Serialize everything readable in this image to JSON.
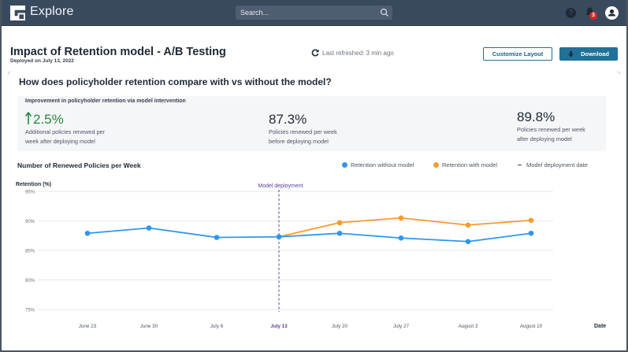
{
  "app": {
    "name": "Explore",
    "search_placeholder": "Search...",
    "notification_count": "3"
  },
  "header": {
    "title": "Impact of Retention model - A/B Testing",
    "subtitle": "Deployed on July 13, 2022",
    "last_refreshed": "Last refreshed: 3 min ago",
    "customize_label": "Customize Layout",
    "download_label": "Download"
  },
  "section": {
    "question": "How does policyholder retention compare with vs without the model?"
  },
  "kpi": {
    "title": "Improvement in policyholder retention via model intervention",
    "items": [
      {
        "value": "2.5%",
        "trend": "up",
        "desc_line1": "Additional policies renewed per",
        "desc_line2": "week after deploying model"
      },
      {
        "value": "87.3%",
        "desc_line1": "Policies renewed per week",
        "desc_line2": "before deploying model"
      },
      {
        "value": "89.8%",
        "desc_line1": "Policies renewed per week",
        "desc_line2": "after deploying model"
      }
    ]
  },
  "colors": {
    "without_model": "#2f96ee",
    "with_model": "#f89b2e",
    "deployment": "#5b3f9e",
    "positive": "#1e8a3a"
  },
  "chart_data": {
    "type": "line",
    "title": "Number of Renewed Policies per Week",
    "xlabel": "Date",
    "ylabel": "Retention (%)",
    "ylim": [
      75,
      95
    ],
    "yticks": [
      75,
      80,
      85,
      90,
      95
    ],
    "ytick_labels": [
      "75%",
      "80%",
      "85%",
      "90%",
      "95%"
    ],
    "grid": true,
    "legend_position": "top-right",
    "categories": [
      "June 23",
      "June 30",
      "July 6",
      "July 13",
      "July 20",
      "July 27",
      "August 3",
      "August 10"
    ],
    "series": [
      {
        "name": "Retention without model",
        "values": [
          87.9,
          88.8,
          87.2,
          87.3,
          87.9,
          87.1,
          86.5,
          87.9
        ]
      },
      {
        "name": "Retention with model",
        "values": [
          null,
          null,
          null,
          87.3,
          89.7,
          90.5,
          89.3,
          90.1
        ]
      }
    ],
    "annotation": {
      "label": "Model deployment",
      "x": "July 13",
      "legend_label": "Model deployment date"
    }
  }
}
